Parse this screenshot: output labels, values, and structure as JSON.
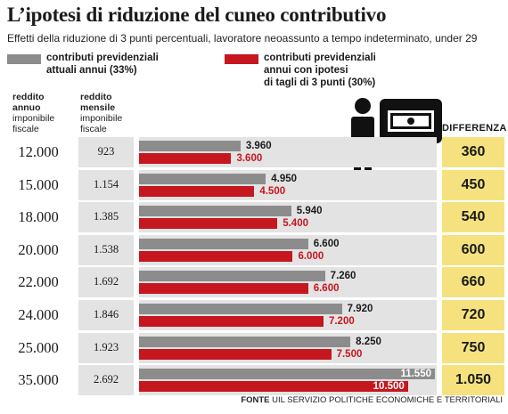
{
  "header": {
    "title": "L’ipotesi di riduzione del cuneo contributivo",
    "subtitle": "Effetti della riduzione di 3 punti percentuali, lavoratore neoassunto a tempo indeterminato, under 29"
  },
  "legend": {
    "current": {
      "line1": "contributi previdenziali",
      "line2": "attuali annui (33%)",
      "color": "#8c8c8c"
    },
    "reduced": {
      "line1": "contributi previdenziali",
      "line2": "annui con ipotesi",
      "line3": "di tagli di 3 punti (30%)",
      "color": "#c6161e"
    }
  },
  "columns": {
    "annual_line1": "reddito",
    "annual_line2": "annuo",
    "annual_line3": "imponibile",
    "annual_line4": "fiscale",
    "monthly_line1": "reddito",
    "monthly_line2": "mensile",
    "monthly_line3": "imponibile",
    "monthly_line4": "fiscale",
    "difference": "DIFFERENZA"
  },
  "source": {
    "label": "FONTE",
    "text": "UIL SERVIZIO POLITICHE ECONOMICHE E TERRITORIALI"
  },
  "colors": {
    "band": "#e3e3e3",
    "difference": "#f5e27e"
  },
  "chart_data": {
    "type": "bar",
    "orientation": "horizontal",
    "categories": [
      "12.000",
      "15.000",
      "18.000",
      "20.000",
      "22.000",
      "24.000",
      "25.000",
      "35.000"
    ],
    "monthly_income": [
      "923",
      "1.154",
      "1.385",
      "1.538",
      "1.692",
      "1.846",
      "1.923",
      "2.692"
    ],
    "series": [
      {
        "name": "contributi previdenziali attuali annui (33%)",
        "values": [
          3960,
          4950,
          5940,
          6600,
          7260,
          7920,
          8250,
          11550
        ],
        "labels": [
          "3.960",
          "4.950",
          "5.940",
          "6.600",
          "7.260",
          "7.920",
          "8.250",
          "11.550"
        ]
      },
      {
        "name": "contributi previdenziali annui con ipotesi di tagli di 3 punti (30%)",
        "values": [
          3600,
          4500,
          5400,
          6000,
          6600,
          7200,
          7500,
          10500
        ],
        "labels": [
          "3.600",
          "4.500",
          "5.400",
          "6.000",
          "6.600",
          "7.200",
          "7.500",
          "10.500"
        ]
      }
    ],
    "difference": {
      "values": [
        360,
        450,
        540,
        600,
        660,
        720,
        750,
        1050
      ],
      "labels": [
        "360",
        "450",
        "540",
        "600",
        "660",
        "720",
        "750",
        "1.050"
      ]
    },
    "xlim": [
      0,
      11550
    ]
  }
}
